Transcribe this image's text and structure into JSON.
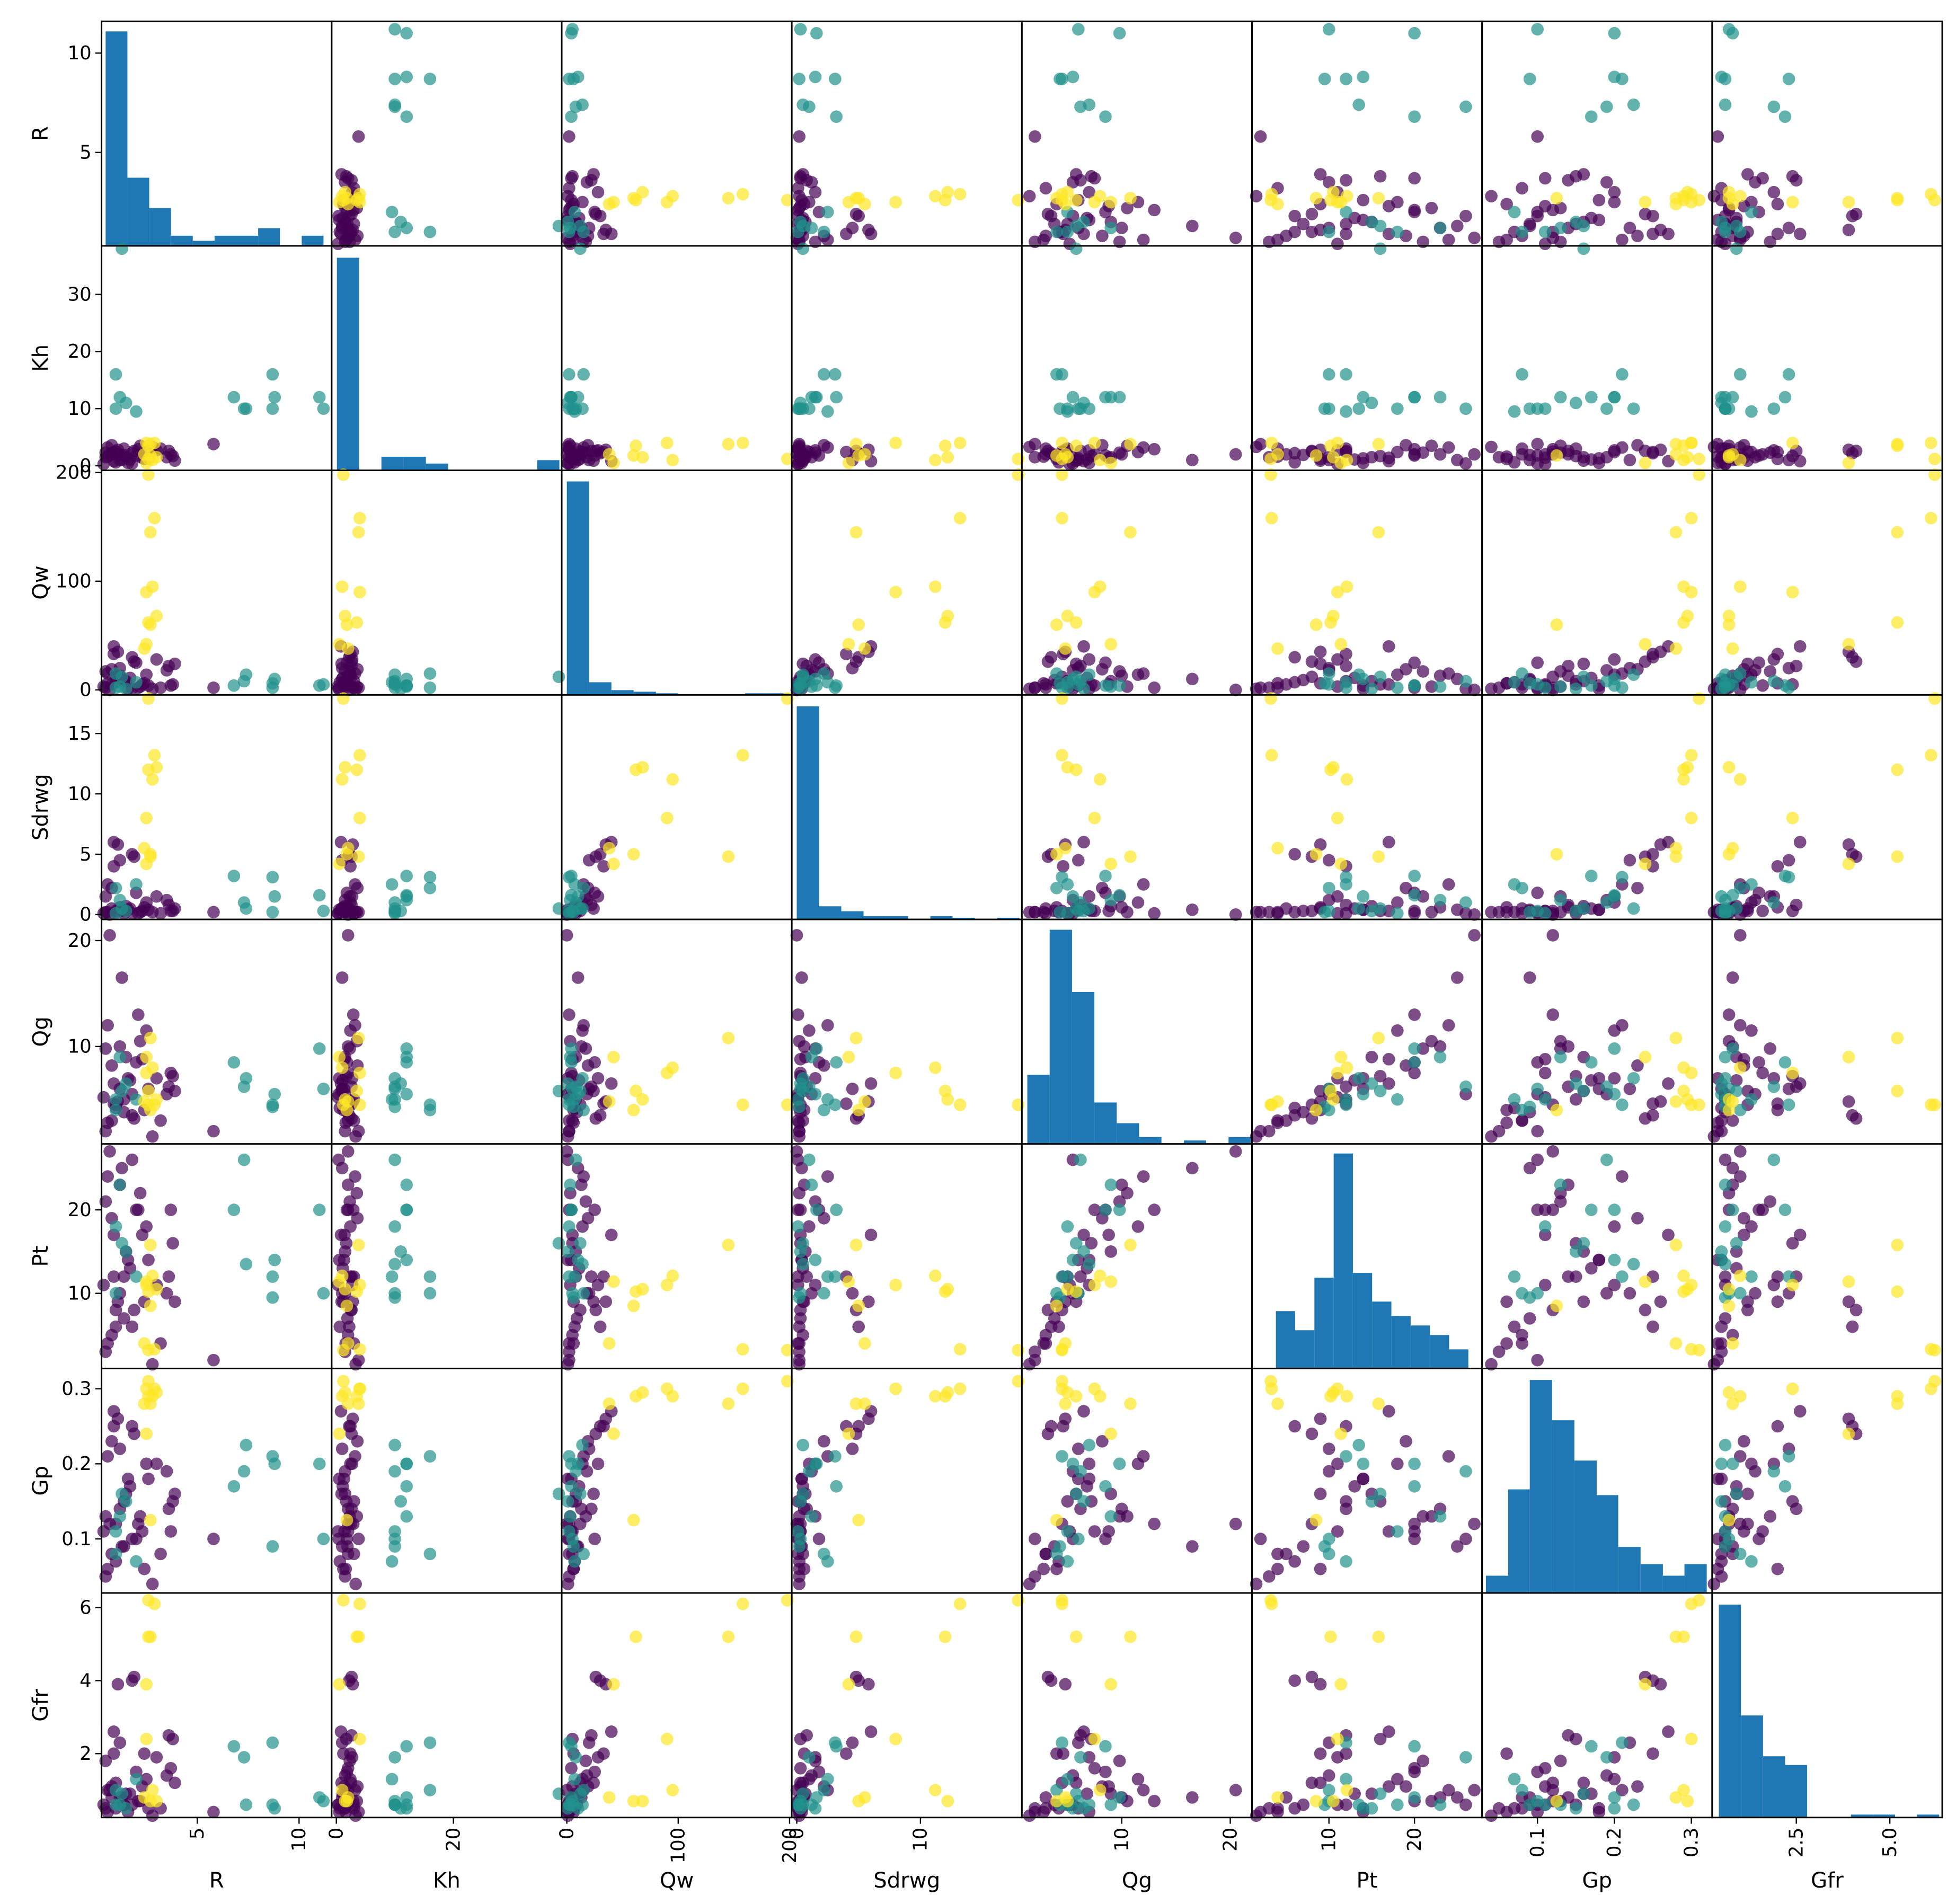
{
  "chart_data": {
    "type": "scatter_matrix",
    "hist_color": "#1f77b4",
    "variables": [
      {
        "name": "R",
        "lim": [
          0.3,
          11.6
        ],
        "xticks": [
          5,
          10
        ],
        "yticks": [
          5,
          10
        ],
        "hist": {
          "bins": [
            0.5,
            1.57,
            2.64,
            3.71,
            4.78,
            5.85,
            6.92,
            7.99,
            9.06,
            10.13,
            11.2
          ],
          "counts": [
            85,
            27,
            15,
            4,
            2,
            4,
            4,
            7,
            0,
            4
          ],
          "ylim": [
            0,
            89
          ]
        }
      },
      {
        "name": "Kh",
        "lim": [
          -0.8,
          38.5
        ],
        "xticks": [
          0,
          20
        ],
        "yticks": [
          0,
          10,
          20,
          30
        ],
        "hist": {
          "bins": [
            0.1,
            3.9,
            7.7,
            11.5,
            15.3,
            19.1,
            22.9,
            26.7,
            30.5,
            34.3,
            38.1
          ],
          "counts": [
            125,
            0,
            8,
            8,
            4,
            0,
            0,
            0,
            0,
            6
          ],
          "ylim": [
            0,
            132
          ]
        }
      },
      {
        "name": "Qw",
        "lim": [
          -4.6,
          202
        ],
        "xticks": [
          0,
          100,
          200
        ],
        "yticks": [
          0,
          100,
          200
        ],
        "hist": {
          "bins": [
            0,
            20,
            40,
            60,
            80,
            100,
            120,
            140,
            160,
            180,
            200
          ],
          "counts": [
            135,
            8,
            3,
            2,
            1,
            0,
            0,
            0,
            1,
            1
          ],
          "ylim": [
            0,
            142
          ]
        }
      },
      {
        "name": "Sdrwg",
        "lim": [
          -0.4,
          18.2
        ],
        "xticks": [
          0,
          10
        ],
        "yticks": [
          0,
          5,
          10,
          15
        ],
        "hist": {
          "bins": [
            0,
            1.8,
            3.6,
            5.4,
            7.2,
            9,
            10.8,
            12.6,
            14.4,
            16.2,
            18
          ],
          "counts": [
            130,
            8,
            5,
            2,
            2,
            0,
            2,
            1,
            0,
            1
          ],
          "ylim": [
            0,
            137
          ]
        }
      },
      {
        "name": "Qg",
        "lim": [
          0.8,
          22
        ],
        "xticks": [
          10,
          20
        ],
        "yticks": [
          10,
          20
        ],
        "hist": {
          "bins": [
            1.3,
            3.36,
            5.42,
            7.48,
            9.54,
            11.6,
            13.66,
            15.72,
            17.78,
            19.84,
            21.9
          ],
          "counts": [
            20,
            62,
            44,
            12,
            6,
            2,
            0,
            1,
            0,
            2
          ],
          "ylim": [
            0,
            65
          ]
        }
      },
      {
        "name": "Pt",
        "lim": [
          1.0,
          27.9
        ],
        "xticks": [
          10,
          20
        ],
        "yticks": [
          10,
          20
        ],
        "hist": {
          "bins": [
            3.8,
            6.05,
            8.3,
            10.55,
            12.8,
            15.05,
            17.3,
            19.55,
            21.8,
            24.05,
            26.3
          ],
          "counts": [
            12,
            8,
            19,
            45,
            20,
            14,
            11,
            9,
            7,
            4
          ],
          "ylim": [
            0,
            47
          ]
        }
      },
      {
        "name": "Gp",
        "lim": [
          0.028,
          0.327
        ],
        "xticks": [
          0.1,
          0.2,
          0.3
        ],
        "yticks": [
          0.1,
          0.2,
          0.3
        ],
        "hist": {
          "bins": [
            0.033,
            0.062,
            0.09,
            0.119,
            0.148,
            0.177,
            0.205,
            0.234,
            0.263,
            0.291,
            0.32
          ],
          "counts": [
            3,
            18,
            37,
            30,
            23,
            17,
            8,
            5,
            3,
            5
          ],
          "ylim": [
            0,
            39
          ]
        }
      },
      {
        "name": "Gfr",
        "lim": [
          0.25,
          6.4
        ],
        "xticks": [
          2.5,
          {
            "value": 5,
            "label": "5.0"
          }
        ],
        "yticks": [
          2,
          4,
          6
        ],
        "hist": {
          "bins": [
            0.43,
            1.02,
            1.61,
            2.2,
            2.79,
            3.38,
            3.96,
            4.55,
            5.14,
            5.73,
            6.32
          ],
          "counts": [
            73,
            35,
            21,
            18,
            0,
            0,
            1,
            1,
            0,
            1
          ],
          "ylim": [
            0,
            77
          ]
        }
      }
    ],
    "series": [
      {
        "color": "#440154",
        "points": [
          [
            0.5,
            1.5,
            2,
            0.2,
            2.0,
            3,
            0.05,
            0.5
          ],
          [
            0.8,
            2.0,
            5,
            0.5,
            3.0,
            5,
            0.08,
            0.8
          ],
          [
            1.0,
            2.5,
            12,
            0.3,
            4.5,
            8,
            0.12,
            1.2
          ],
          [
            1.2,
            1.0,
            20,
            4.5,
            6.0,
            10,
            0.22,
            2.3
          ],
          [
            1.4,
            3.0,
            8,
            0.1,
            5.0,
            12,
            0.15,
            0.6
          ],
          [
            1.6,
            0.5,
            1,
            0.4,
            7.0,
            14,
            0.18,
            0.4
          ],
          [
            1.8,
            2.2,
            30,
            5.0,
            3.5,
            6,
            0.25,
            4.0
          ],
          [
            2.0,
            1.8,
            25,
            1.8,
            8.5,
            20,
            0.1,
            1.5
          ],
          [
            2.2,
            3.5,
            3,
            0.2,
            10.5,
            22,
            0.13,
            0.7
          ],
          [
            2.4,
            1.2,
            6,
            0.6,
            4.0,
            9,
            0.06,
            2.0
          ],
          [
            0.6,
            3.2,
            15,
            2.5,
            12,
            24,
            0.21,
            1.0
          ],
          [
            0.9,
            0.8,
            40,
            6.0,
            6.5,
            17,
            0.27,
            2.6
          ],
          [
            3.6,
            2.6,
            22,
            0.8,
            6.2,
            12,
            0.14,
            2.5
          ],
          [
            3.7,
            2.0,
            4,
            0.3,
            7.5,
            20,
            0.11,
            1.6
          ],
          [
            3.5,
            1.5,
            18,
            1.2,
            5.5,
            10,
            0.19,
            1.4
          ],
          [
            3.2,
            3.0,
            2,
            0.1,
            3.0,
            4,
            0.08,
            0.5
          ],
          [
            1.1,
            2.8,
            35,
            5.8,
            4.8,
            9,
            0.26,
            3.9
          ],
          [
            1.3,
            1.0,
            10,
            0.4,
            16.5,
            25,
            0.09,
            0.8
          ],
          [
            0.7,
            2.0,
            0,
            0.0,
            20.5,
            27,
            0.12,
            1.0
          ],
          [
            5.8,
            3.8,
            2,
            0.2,
            2.0,
            2,
            0.1,
            0.4
          ],
          [
            1.5,
            1.5,
            8,
            0.7,
            9.0,
            15,
            0.16,
            0.9
          ],
          [
            2.5,
            2.4,
            14,
            1.0,
            11.5,
            18,
            0.2,
            1.3
          ],
          [
            0.4,
            0.3,
            3,
            0.1,
            5.2,
            11,
            0.11,
            0.6
          ],
          [
            1.9,
            2.6,
            26,
            4.8,
            3.2,
            8,
            0.24,
            4.1
          ],
          [
            3.8,
            1.7,
            5,
            0.3,
            7.2,
            16,
            0.15,
            2.4
          ],
          [
            2.8,
            3.3,
            1,
            0.2,
            1.5,
            1.5,
            0.04,
            0.3
          ],
          [
            1.7,
            1.1,
            11,
            0.5,
            6.8,
            13,
            0.17,
            0.9
          ],
          [
            0.5,
            2.3,
            17,
            1.5,
            9.8,
            21,
            0.13,
            1.8
          ],
          [
            1.0,
            0.6,
            7,
            0.2,
            4.2,
            6,
            0.07,
            0.5
          ],
          [
            2.1,
            2.9,
            2,
            0.1,
            13.0,
            20,
            0.12,
            0.7
          ],
          [
            3.9,
            0.9,
            24,
            0.5,
            5.8,
            9,
            0.16,
            1.2
          ],
          [
            1.4,
            1.9,
            9,
            0.3,
            3.8,
            7,
            0.09,
            0.6
          ],
          [
            0.8,
            3.6,
            19,
            2.2,
            8.2,
            19,
            0.23,
            1.1
          ],
          [
            2.6,
            1.3,
            4,
            0.4,
            6.0,
            14,
            0.18,
            0.5
          ],
          [
            1.2,
            2.0,
            13,
            0.6,
            10.0,
            23,
            0.14,
            0.8
          ],
          [
            0.6,
            1.6,
            6,
            0.2,
            2.8,
            4,
            0.06,
            0.4
          ],
          [
            3.0,
            2.7,
            28,
            1.5,
            7.0,
            11,
            0.2,
            1.9
          ],
          [
            1.8,
            0.4,
            1,
            0.1,
            5.5,
            26,
            0.1,
            0.6
          ],
          [
            0.9,
            2.4,
            33,
            4.0,
            4.6,
            12,
            0.25,
            2.0
          ],
          [
            2.3,
            1.4,
            5,
            0.3,
            8.8,
            17,
            0.11,
            1.1
          ]
        ]
      },
      {
        "color": "#21918c",
        "points": [
          [
            11.2,
            10,
            5,
            0.3,
            6,
            10,
            0.1,
            0.7
          ],
          [
            8.8,
            12,
            10,
            1.5,
            5.5,
            14,
            0.2,
            0.5
          ],
          [
            8.7,
            16,
            2,
            3.1,
            4.5,
            12,
            0.21,
            2.3
          ],
          [
            7.3,
            10,
            8,
            1.0,
            6.2,
            26,
            0.19,
            1.9
          ],
          [
            6.8,
            12,
            4,
            3.2,
            8.5,
            20,
            0.17,
            2.2
          ],
          [
            1.3,
            38,
            12,
            0.5,
            5.8,
            16,
            0.16,
            0.9
          ],
          [
            1.2,
            12,
            3,
            1.2,
            9,
            23,
            0.13,
            0.6
          ],
          [
            1.0,
            16,
            15,
            2.2,
            4,
            10,
            0.08,
            1.0
          ],
          [
            8.7,
            10,
            6,
            0.2,
            4.3,
            9.5,
            0.09,
            0.6
          ],
          [
            7.4,
            10,
            14,
            0.5,
            7,
            13.5,
            0.225,
            0.6
          ],
          [
            1.5,
            11,
            1,
            0.3,
            6.5,
            15,
            0.15,
            0.5
          ],
          [
            2.0,
            9.5,
            7,
            2.5,
            5,
            12,
            0.07,
            1.3
          ],
          [
            11.0,
            12,
            4,
            1.6,
            9.8,
            20,
            0.2,
            0.8
          ],
          [
            1.0,
            10,
            2,
            0.1,
            5,
            18,
            0.11,
            0.6
          ]
        ]
      },
      {
        "color": "#fde725",
        "points": [
          [
            2.6,
            1.2,
            198,
            17.9,
            4.5,
            3.2,
            0.31,
            6.2
          ],
          [
            2.9,
            4,
            158,
            13.2,
            4.5,
            3.3,
            0.3,
            6.1
          ],
          [
            2.7,
            3.8,
            145,
            4.8,
            10.8,
            15.8,
            0.28,
            5.2
          ],
          [
            2.8,
            1.0,
            95,
            11.2,
            8,
            12.1,
            0.29,
            1.0
          ],
          [
            2.5,
            4,
            90,
            8,
            7.5,
            11,
            0.3,
            2.4
          ],
          [
            3.0,
            1.5,
            68,
            12.2,
            5,
            10.5,
            0.295,
            0.7
          ],
          [
            2.6,
            3.5,
            62,
            12,
            5.8,
            10.2,
            0.29,
            5.2
          ],
          [
            2.7,
            1.8,
            60,
            5,
            4,
            8.5,
            0.125,
            0.7
          ],
          [
            2.5,
            0.5,
            42,
            4.2,
            9,
            11.4,
            0.24,
            3.9
          ],
          [
            2.4,
            2.0,
            38,
            5.5,
            4.8,
            4,
            0.28,
            0.8
          ]
        ]
      }
    ]
  }
}
